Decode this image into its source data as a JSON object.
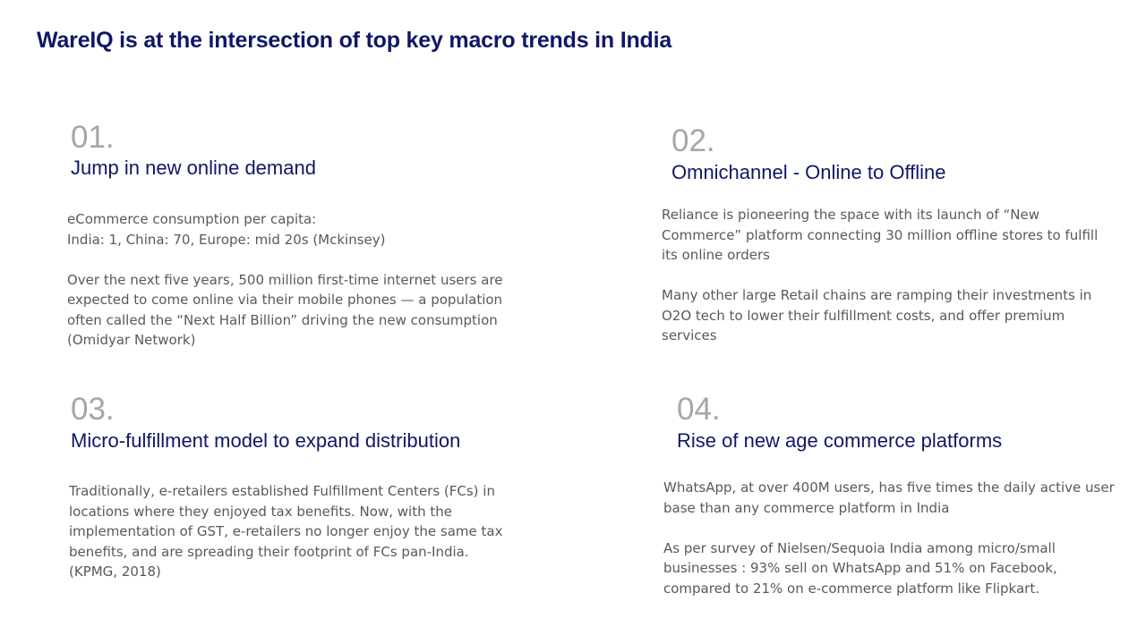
{
  "title": "WareIQ is at the intersection of top key macro trends in India",
  "trends": [
    {
      "number": "01.",
      "heading": "Jump in new online demand",
      "paragraphs": [
        "eCommerce consumption per capita:\nIndia: 1, China: 70, Europe: mid 20s (Mckinsey)",
        "Over the next five years, 500 million first-time internet users are expected to come online via their mobile phones — a population often called the “Next Half Billion” driving the new consumption (Omidyar Network)"
      ]
    },
    {
      "number": "02.",
      "heading": "Omnichannel - Online to Offline",
      "paragraphs": [
        "Reliance is pioneering the space with its launch of “New Commerce” platform connecting 30 million offline stores to fulfill its online orders",
        "Many other large Retail chains are ramping their investments in O2O tech to lower their fulfillment costs, and offer premium services"
      ]
    },
    {
      "number": "03.",
      "heading": "Micro-fulfillment model to expand distribution",
      "paragraphs": [
        "Traditionally, e-retailers established Fulfillment Centers (FCs) in locations where they enjoyed tax benefits. Now, with the implementation of GST, e-retailers no longer enjoy the same tax benefits, and are spreading their footprint of FCs pan-India. (KPMG, 2018)"
      ]
    },
    {
      "number": "04.",
      "heading": "Rise of new age commerce platforms",
      "paragraphs": [
        "WhatsApp, at over 400M users, has five times the daily active user base than any commerce platform in India",
        "As per survey of Nielsen/Sequoia India among micro/small businesses : 93% sell on WhatsApp and 51% on Facebook, compared to 21% on e-commerce platform like Flipkart."
      ]
    }
  ]
}
